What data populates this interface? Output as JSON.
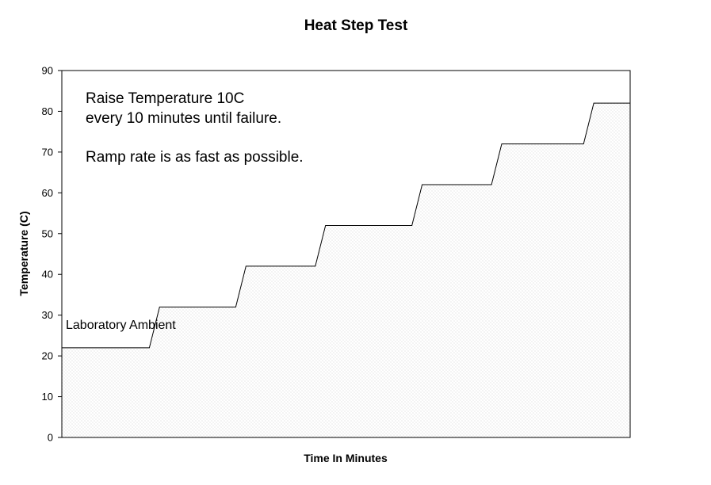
{
  "chart_data": {
    "type": "area",
    "title": "Heat Step Test",
    "xlabel": "Time In Minutes",
    "ylabel": "Temperature (C)",
    "ylim": [
      0,
      90
    ],
    "yticks": [
      "0",
      "10",
      "20",
      "30",
      "40",
      "50",
      "60",
      "70",
      "80",
      "90"
    ],
    "x_tick_labels": "none",
    "grid": false,
    "fill": "dotted-stipple",
    "series": [
      {
        "values_x_relative": [
          0,
          0.154,
          0.172,
          0.306,
          0.324,
          0.446,
          0.464,
          0.616,
          0.634,
          0.756,
          0.774,
          0.918,
          0.936,
          1.0
        ],
        "values_y": [
          22,
          22,
          32,
          32,
          42,
          42,
          52,
          52,
          62,
          62,
          72,
          72,
          82,
          82
        ]
      }
    ],
    "annotations": {
      "note_line1": "Raise Temperature 10C",
      "note_line2": "every 10 minutes until failure.",
      "note_line3": "Ramp rate is as fast as possible.",
      "ambient_label": "Laboratory Ambient"
    },
    "colors": {
      "line": "#000000",
      "stipple": "#c8c8c8"
    }
  }
}
